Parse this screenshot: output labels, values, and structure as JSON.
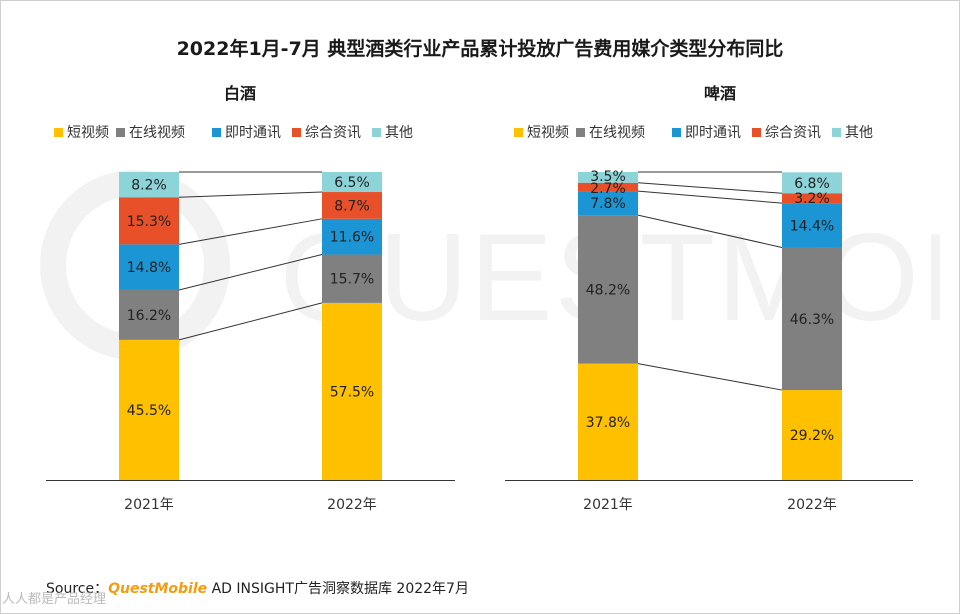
{
  "title": "2022年1月-7月 典型酒类行业产品累计投放广告费用媒介类型分布同比",
  "colors": {
    "短视频": "#FFC000",
    "在线视频": "#808080",
    "即时通讯": "#1B95D4",
    "综合资讯": "#E8502A",
    "其他": "#8DD4D8"
  },
  "chart_data": [
    {
      "type": "bar",
      "stacked": true,
      "normalized": true,
      "title": "白酒",
      "categories": [
        "2021年",
        "2022年"
      ],
      "series": [
        {
          "name": "短视频",
          "values": [
            45.5,
            57.5
          ]
        },
        {
          "name": "在线视频",
          "values": [
            16.2,
            15.7
          ]
        },
        {
          "name": "即时通讯",
          "values": [
            14.8,
            11.6
          ]
        },
        {
          "name": "综合资讯",
          "values": [
            15.3,
            8.7
          ]
        },
        {
          "name": "其他",
          "values": [
            8.2,
            6.5
          ]
        }
      ],
      "ylim": [
        0,
        100
      ],
      "legend": "top",
      "grid": false,
      "value_format": "percent"
    },
    {
      "type": "bar",
      "stacked": true,
      "normalized": true,
      "title": "啤酒",
      "categories": [
        "2021年",
        "2022年"
      ],
      "series": [
        {
          "name": "短视频",
          "values": [
            37.8,
            29.2
          ]
        },
        {
          "name": "在线视频",
          "values": [
            48.2,
            46.3
          ]
        },
        {
          "name": "即时通讯",
          "values": [
            7.8,
            14.4
          ]
        },
        {
          "name": "综合资讯",
          "values": [
            2.7,
            3.2
          ]
        },
        {
          "name": "其他",
          "values": [
            3.5,
            6.8
          ]
        }
      ],
      "ylim": [
        0,
        100
      ],
      "legend": "top",
      "grid": false,
      "value_format": "percent"
    }
  ],
  "watermark": "QUESTMOBILE",
  "source": {
    "prefix": "Source：",
    "brand": "QuestMobile",
    "text": " AD INSIGHT广告洞察数据库 2022年7月"
  },
  "corner_mark": "人人都是产品经理"
}
